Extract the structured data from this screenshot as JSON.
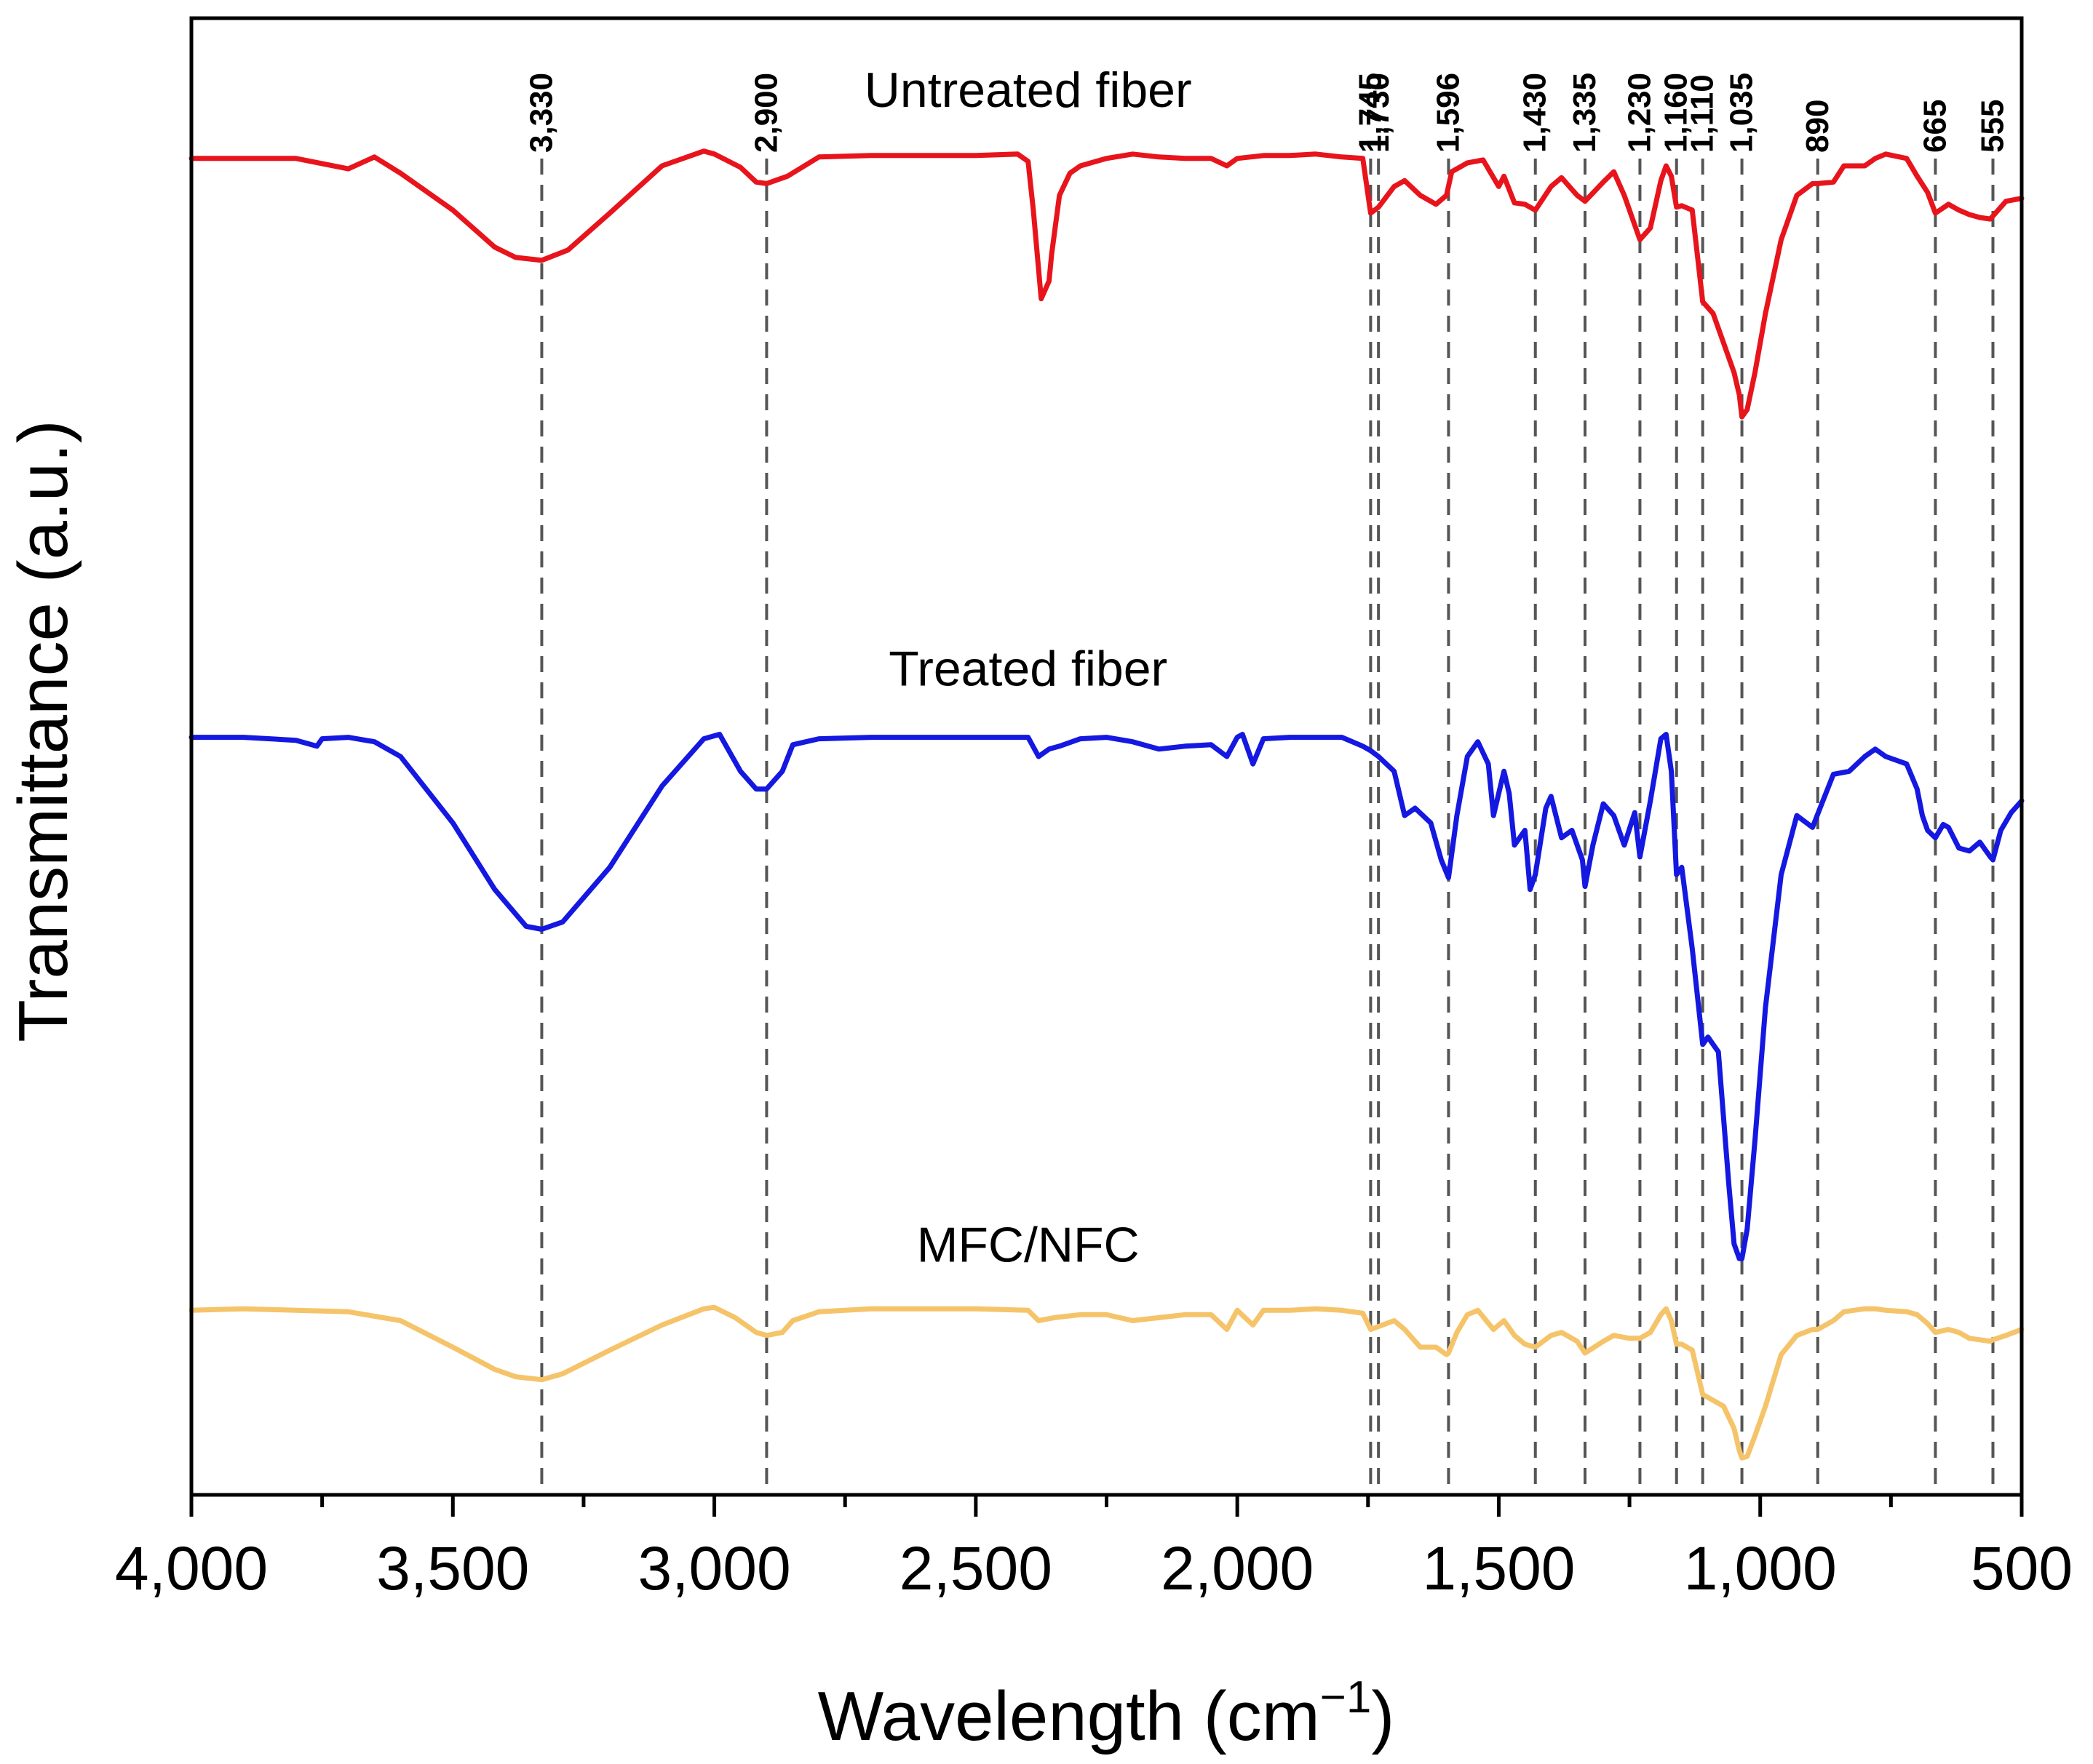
{
  "chart_data": {
    "type": "line",
    "title": "",
    "xlabel": "Wavelength (cm",
    "xlabel_sup": "−1",
    "xlabel_close": ")",
    "ylabel": "Transmittance (a.u.)",
    "xlim": [
      4000,
      500
    ],
    "ylim": [
      0,
      1
    ],
    "x_ticks": [
      4000,
      3500,
      3000,
      2500,
      2000,
      1500,
      1000,
      500
    ],
    "x_tick_labels": [
      "4,000",
      "3,500",
      "3,000",
      "2,500",
      "2,000",
      "1,500",
      "1,000",
      "500"
    ],
    "grid": false,
    "peak_markers": [
      3330,
      2900,
      1745,
      1730,
      1596,
      1430,
      1335,
      1230,
      1160,
      1110,
      1035,
      890,
      665,
      555
    ],
    "peak_labels": [
      "3,330",
      "2,900",
      "1,745",
      "1,730",
      "1,596",
      "1,430",
      "1,335",
      "1,230",
      "1,160",
      "1,110",
      "1,035",
      "890",
      "665",
      "555"
    ],
    "series": [
      {
        "name": "Untreated fiber",
        "color": "#e8141c",
        "x": [
          4000,
          3800,
          3700,
          3650,
          3600,
          3500,
          3420,
          3380,
          3330,
          3280,
          3200,
          3100,
          3020,
          3000,
          2950,
          2920,
          2900,
          2860,
          2800,
          2700,
          2600,
          2500,
          2420,
          2400,
          2390,
          2375,
          2360,
          2355,
          2340,
          2320,
          2300,
          2250,
          2200,
          2150,
          2100,
          2050,
          2020,
          2000,
          1950,
          1900,
          1850,
          1800,
          1760,
          1745,
          1730,
          1700,
          1680,
          1650,
          1620,
          1600,
          1590,
          1560,
          1530,
          1500,
          1490,
          1470,
          1450,
          1430,
          1400,
          1380,
          1350,
          1335,
          1300,
          1280,
          1260,
          1230,
          1210,
          1190,
          1180,
          1170,
          1160,
          1150,
          1130,
          1110,
          1090,
          1070,
          1050,
          1040,
          1035,
          1025,
          1010,
          990,
          960,
          930,
          900,
          890,
          860,
          840,
          800,
          780,
          760,
          720,
          700,
          680,
          665,
          640,
          620,
          600,
          580,
          560,
          555,
          530,
          500
        ],
        "y": [
          0.905,
          0.905,
          0.898,
          0.906,
          0.895,
          0.87,
          0.845,
          0.838,
          0.836,
          0.843,
          0.868,
          0.9,
          0.91,
          0.908,
          0.899,
          0.889,
          0.888,
          0.893,
          0.906,
          0.907,
          0.907,
          0.907,
          0.908,
          0.903,
          0.87,
          0.81,
          0.822,
          0.84,
          0.88,
          0.895,
          0.9,
          0.905,
          0.908,
          0.906,
          0.905,
          0.905,
          0.9,
          0.905,
          0.907,
          0.907,
          0.908,
          0.906,
          0.905,
          0.868,
          0.872,
          0.886,
          0.89,
          0.88,
          0.874,
          0.88,
          0.896,
          0.902,
          0.904,
          0.886,
          0.893,
          0.875,
          0.874,
          0.87,
          0.886,
          0.892,
          0.88,
          0.876,
          0.889,
          0.896,
          0.88,
          0.85,
          0.858,
          0.89,
          0.9,
          0.893,
          0.872,
          0.873,
          0.87,
          0.808,
          0.8,
          0.78,
          0.76,
          0.745,
          0.73,
          0.735,
          0.76,
          0.8,
          0.85,
          0.88,
          0.888,
          0.888,
          0.889,
          0.9,
          0.9,
          0.905,
          0.908,
          0.905,
          0.893,
          0.882,
          0.868,
          0.874,
          0.87,
          0.867,
          0.865,
          0.864,
          0.866,
          0.876,
          0.878
        ]
      },
      {
        "name": "Treated fiber",
        "color": "#1418e0",
        "x": [
          4000,
          3900,
          3800,
          3760,
          3750,
          3700,
          3650,
          3600,
          3500,
          3420,
          3360,
          3330,
          3290,
          3200,
          3100,
          3020,
          2990,
          2950,
          2920,
          2900,
          2870,
          2850,
          2800,
          2700,
          2600,
          2500,
          2400,
          2380,
          2360,
          2340,
          2300,
          2250,
          2200,
          2150,
          2100,
          2050,
          2020,
          2000,
          1990,
          1970,
          1950,
          1900,
          1850,
          1800,
          1760,
          1745,
          1730,
          1700,
          1680,
          1660,
          1630,
          1610,
          1596,
          1580,
          1560,
          1540,
          1520,
          1510,
          1490,
          1480,
          1470,
          1450,
          1440,
          1430,
          1410,
          1400,
          1380,
          1360,
          1340,
          1335,
          1320,
          1300,
          1280,
          1260,
          1240,
          1230,
          1210,
          1190,
          1180,
          1170,
          1160,
          1150,
          1130,
          1110,
          1100,
          1080,
          1060,
          1050,
          1040,
          1035,
          1025,
          1010,
          990,
          960,
          930,
          900,
          880,
          860,
          830,
          800,
          780,
          760,
          720,
          700,
          690,
          680,
          665,
          650,
          640,
          620,
          600,
          580,
          560,
          555,
          540,
          520,
          500
        ],
        "y": [
          0.513,
          0.513,
          0.511,
          0.507,
          0.512,
          0.513,
          0.51,
          0.5,
          0.455,
          0.41,
          0.385,
          0.383,
          0.388,
          0.425,
          0.48,
          0.512,
          0.515,
          0.49,
          0.478,
          0.478,
          0.49,
          0.508,
          0.512,
          0.513,
          0.513,
          0.513,
          0.513,
          0.5,
          0.505,
          0.507,
          0.512,
          0.513,
          0.51,
          0.505,
          0.507,
          0.508,
          0.5,
          0.513,
          0.515,
          0.495,
          0.512,
          0.513,
          0.513,
          0.513,
          0.507,
          0.504,
          0.5,
          0.49,
          0.46,
          0.465,
          0.455,
          0.43,
          0.418,
          0.46,
          0.5,
          0.51,
          0.495,
          0.46,
          0.49,
          0.475,
          0.44,
          0.45,
          0.41,
          0.42,
          0.465,
          0.473,
          0.445,
          0.45,
          0.43,
          0.412,
          0.44,
          0.468,
          0.46,
          0.44,
          0.462,
          0.432,
          0.47,
          0.512,
          0.515,
          0.49,
          0.42,
          0.425,
          0.37,
          0.305,
          0.31,
          0.3,
          0.21,
          0.17,
          0.16,
          0.16,
          0.18,
          0.24,
          0.33,
          0.42,
          0.46,
          0.452,
          0.47,
          0.488,
          0.49,
          0.5,
          0.505,
          0.5,
          0.495,
          0.478,
          0.46,
          0.45,
          0.445,
          0.454,
          0.452,
          0.438,
          0.436,
          0.442,
          0.432,
          0.43,
          0.45,
          0.462,
          0.47
        ]
      },
      {
        "name": "MFC/NFC",
        "color": "#f5c46a",
        "x": [
          4000,
          3900,
          3800,
          3700,
          3600,
          3500,
          3420,
          3380,
          3330,
          3290,
          3200,
          3100,
          3020,
          3000,
          2960,
          2920,
          2900,
          2870,
          2850,
          2800,
          2700,
          2600,
          2500,
          2400,
          2380,
          2350,
          2300,
          2250,
          2200,
          2150,
          2100,
          2050,
          2020,
          2000,
          1970,
          1950,
          1900,
          1850,
          1800,
          1760,
          1745,
          1730,
          1700,
          1680,
          1650,
          1620,
          1600,
          1596,
          1580,
          1560,
          1540,
          1510,
          1490,
          1470,
          1450,
          1430,
          1400,
          1380,
          1350,
          1335,
          1300,
          1280,
          1250,
          1230,
          1210,
          1190,
          1180,
          1170,
          1160,
          1150,
          1130,
          1110,
          1090,
          1070,
          1050,
          1040,
          1035,
          1025,
          1010,
          990,
          960,
          930,
          900,
          890,
          860,
          840,
          800,
          780,
          760,
          720,
          700,
          680,
          665,
          640,
          620,
          600,
          580,
          560,
          555,
          530,
          500
        ],
        "y": [
          0.125,
          0.126,
          0.125,
          0.124,
          0.118,
          0.1,
          0.085,
          0.08,
          0.078,
          0.082,
          0.098,
          0.115,
          0.126,
          0.127,
          0.12,
          0.11,
          0.108,
          0.11,
          0.118,
          0.124,
          0.126,
          0.126,
          0.126,
          0.125,
          0.118,
          0.12,
          0.122,
          0.122,
          0.118,
          0.12,
          0.122,
          0.122,
          0.112,
          0.125,
          0.115,
          0.125,
          0.125,
          0.126,
          0.125,
          0.123,
          0.112,
          0.114,
          0.118,
          0.112,
          0.1,
          0.1,
          0.095,
          0.096,
          0.11,
          0.122,
          0.125,
          0.112,
          0.118,
          0.108,
          0.102,
          0.1,
          0.108,
          0.11,
          0.104,
          0.096,
          0.104,
          0.108,
          0.106,
          0.106,
          0.11,
          0.122,
          0.126,
          0.118,
          0.102,
          0.102,
          0.098,
          0.068,
          0.064,
          0.06,
          0.045,
          0.03,
          0.025,
          0.026,
          0.04,
          0.06,
          0.095,
          0.108,
          0.112,
          0.112,
          0.118,
          0.124,
          0.126,
          0.126,
          0.125,
          0.124,
          0.122,
          0.116,
          0.11,
          0.112,
          0.11,
          0.106,
          0.105,
          0.104,
          0.105,
          0.108,
          0.112
        ]
      }
    ],
    "annotations": [
      {
        "text": "Untreated fiber",
        "x": 2400,
        "y": 0.94
      },
      {
        "text": "Treated fiber",
        "x": 2400,
        "y": 0.548
      },
      {
        "text": "MFC/NFC",
        "x": 2400,
        "y": 0.158
      }
    ]
  }
}
